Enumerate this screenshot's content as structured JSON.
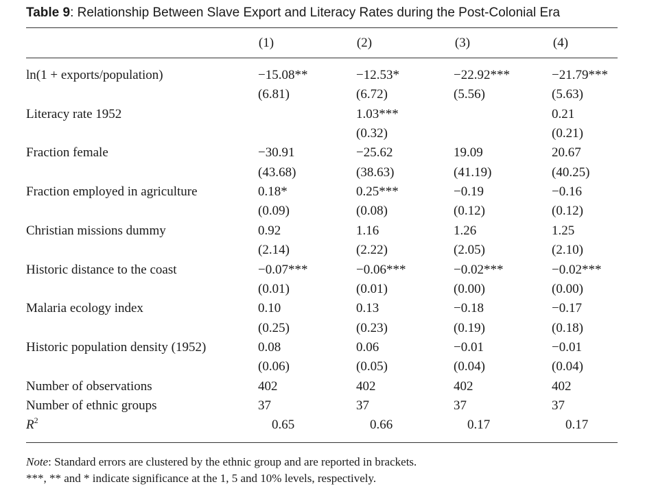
{
  "table": {
    "title_lead": "Table 9",
    "title_rest": ": Relationship Between Slave Export and Literacy Rates during the Post-Colonial Era",
    "columns": [
      "(1)",
      "(2)",
      "(3)",
      "(4)"
    ],
    "rows": [
      {
        "label": "ln(1 + exports/population)",
        "values": [
          "−15.08**",
          "−12.53*",
          "−22.92***",
          "−21.79***"
        ],
        "se": [
          "(6.81)",
          "(6.72)",
          "(5.56)",
          "(5.63)"
        ]
      },
      {
        "label": "Literacy rate 1952",
        "values": [
          "",
          "1.03***",
          "",
          "0.21"
        ],
        "se": [
          "",
          "(0.32)",
          "",
          "(0.21)"
        ]
      },
      {
        "label": "Fraction female",
        "values": [
          "−30.91",
          "−25.62",
          "19.09",
          "20.67"
        ],
        "se": [
          "(43.68)",
          "(38.63)",
          "(41.19)",
          "(40.25)"
        ]
      },
      {
        "label": "Fraction employed in agriculture",
        "values": [
          "0.18*",
          "0.25***",
          "−0.19",
          "−0.16"
        ],
        "se": [
          "(0.09)",
          "(0.08)",
          "(0.12)",
          "(0.12)"
        ]
      },
      {
        "label": "Christian missions dummy",
        "values": [
          "0.92",
          "1.16",
          "1.26",
          "1.25"
        ],
        "se": [
          "(2.14)",
          "(2.22)",
          "(2.05)",
          "(2.10)"
        ]
      },
      {
        "label": "Historic distance to the coast",
        "values": [
          "−0.07***",
          "−0.06***",
          "−0.02***",
          "−0.02***"
        ],
        "se": [
          "(0.01)",
          "(0.01)",
          "(0.00)",
          "(0.00)"
        ]
      },
      {
        "label": "Malaria ecology index",
        "values": [
          "0.10",
          "0.13",
          "−0.18",
          "−0.17"
        ],
        "se": [
          "(0.25)",
          "(0.23)",
          "(0.19)",
          "(0.18)"
        ]
      },
      {
        "label": "Historic population density (1952)",
        "values": [
          "0.08",
          "0.06",
          "−0.01",
          "−0.01"
        ],
        "se": [
          "(0.06)",
          "(0.05)",
          "(0.04)",
          "(0.04)"
        ]
      }
    ],
    "stats": [
      {
        "label": "Number of observations",
        "values": [
          "402",
          "402",
          "402",
          "402"
        ]
      },
      {
        "label": "Number of ethnic groups",
        "values": [
          "37",
          "37",
          "37",
          "37"
        ]
      }
    ],
    "r2": {
      "label_base": "R",
      "label_sup": "2",
      "values": [
        "0.65",
        "0.66",
        "0.17",
        "0.17"
      ]
    },
    "note": {
      "lead": "Note",
      "line1_rest": ": Standard errors are clustered by the ethnic group and are reported in brackets.",
      "line2": "***, ** and * indicate significance at the 1, 5 and 10% levels, respectively."
    }
  }
}
